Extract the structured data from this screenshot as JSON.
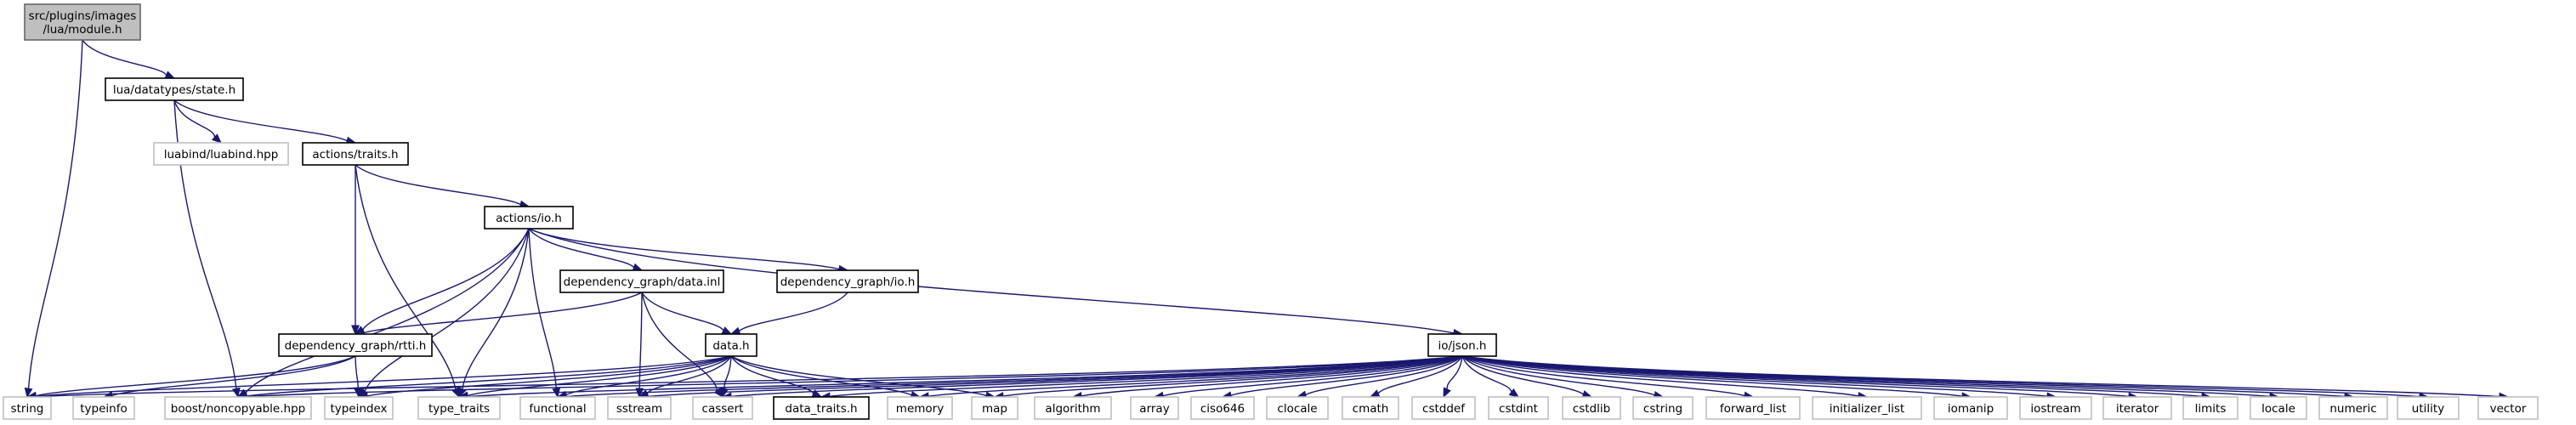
{
  "diagram": {
    "nodes": [
      {
        "id": "module_h",
        "label_lines": [
          "src/plugins/images",
          "/lua/module.h"
        ],
        "style": "root"
      },
      {
        "id": "state_h",
        "label_lines": [
          "lua/datatypes/state.h"
        ],
        "style": "normal"
      },
      {
        "id": "luabind_hpp",
        "label_lines": [
          "luabind/luabind.hpp"
        ],
        "style": "missing"
      },
      {
        "id": "traits_h",
        "label_lines": [
          "actions/traits.h"
        ],
        "style": "normal"
      },
      {
        "id": "actions_io_h",
        "label_lines": [
          "actions/io.h"
        ],
        "style": "normal"
      },
      {
        "id": "dg_data_inl",
        "label_lines": [
          "dependency_graph/data.inl"
        ],
        "style": "normal"
      },
      {
        "id": "dg_io_h",
        "label_lines": [
          "dependency_graph/io.h"
        ],
        "style": "normal"
      },
      {
        "id": "dg_rtti_h",
        "label_lines": [
          "dependency_graph/rtti.h"
        ],
        "style": "normal"
      },
      {
        "id": "data_h",
        "label_lines": [
          "data.h"
        ],
        "style": "normal"
      },
      {
        "id": "json_h",
        "label_lines": [
          "io/json.h"
        ],
        "style": "normal"
      },
      {
        "id": "string",
        "label_lines": [
          "string"
        ],
        "style": "missing"
      },
      {
        "id": "typeinfo",
        "label_lines": [
          "typeinfo"
        ],
        "style": "missing"
      },
      {
        "id": "noncopyable",
        "label_lines": [
          "boost/noncopyable.hpp"
        ],
        "style": "missing"
      },
      {
        "id": "typeindex",
        "label_lines": [
          "typeindex"
        ],
        "style": "missing"
      },
      {
        "id": "type_traits",
        "label_lines": [
          "type_traits"
        ],
        "style": "missing"
      },
      {
        "id": "functional",
        "label_lines": [
          "functional"
        ],
        "style": "missing"
      },
      {
        "id": "sstream",
        "label_lines": [
          "sstream"
        ],
        "style": "missing"
      },
      {
        "id": "cassert",
        "label_lines": [
          "cassert"
        ],
        "style": "missing"
      },
      {
        "id": "data_traits_h",
        "label_lines": [
          "data_traits.h"
        ],
        "style": "normal"
      },
      {
        "id": "memory",
        "label_lines": [
          "memory"
        ],
        "style": "missing"
      },
      {
        "id": "map",
        "label_lines": [
          "map"
        ],
        "style": "missing"
      },
      {
        "id": "algorithm",
        "label_lines": [
          "algorithm"
        ],
        "style": "missing"
      },
      {
        "id": "array",
        "label_lines": [
          "array"
        ],
        "style": "missing"
      },
      {
        "id": "ciso646",
        "label_lines": [
          "ciso646"
        ],
        "style": "missing"
      },
      {
        "id": "clocale",
        "label_lines": [
          "clocale"
        ],
        "style": "missing"
      },
      {
        "id": "cmath",
        "label_lines": [
          "cmath"
        ],
        "style": "missing"
      },
      {
        "id": "cstddef",
        "label_lines": [
          "cstddef"
        ],
        "style": "missing"
      },
      {
        "id": "cstdint",
        "label_lines": [
          "cstdint"
        ],
        "style": "missing"
      },
      {
        "id": "cstdlib",
        "label_lines": [
          "cstdlib"
        ],
        "style": "missing"
      },
      {
        "id": "cstring",
        "label_lines": [
          "cstring"
        ],
        "style": "missing"
      },
      {
        "id": "forward_list",
        "label_lines": [
          "forward_list"
        ],
        "style": "missing"
      },
      {
        "id": "initializer_list",
        "label_lines": [
          "initializer_list"
        ],
        "style": "missing"
      },
      {
        "id": "iomanip",
        "label_lines": [
          "iomanip"
        ],
        "style": "missing"
      },
      {
        "id": "iostream",
        "label_lines": [
          "iostream"
        ],
        "style": "missing"
      },
      {
        "id": "iterator",
        "label_lines": [
          "iterator"
        ],
        "style": "missing"
      },
      {
        "id": "limits",
        "label_lines": [
          "limits"
        ],
        "style": "missing"
      },
      {
        "id": "locale",
        "label_lines": [
          "locale"
        ],
        "style": "missing"
      },
      {
        "id": "numeric",
        "label_lines": [
          "numeric"
        ],
        "style": "missing"
      },
      {
        "id": "utility",
        "label_lines": [
          "utility"
        ],
        "style": "missing"
      },
      {
        "id": "vector",
        "label_lines": [
          "vector"
        ],
        "style": "missing"
      }
    ],
    "edges": [
      [
        "module_h",
        "state_h"
      ],
      [
        "module_h",
        "string"
      ],
      [
        "state_h",
        "luabind_hpp"
      ],
      [
        "state_h",
        "traits_h"
      ],
      [
        "state_h",
        "noncopyable"
      ],
      [
        "traits_h",
        "actions_io_h"
      ],
      [
        "traits_h",
        "dg_rtti_h"
      ],
      [
        "traits_h",
        "type_traits"
      ],
      [
        "actions_io_h",
        "dg_data_inl"
      ],
      [
        "actions_io_h",
        "dg_io_h"
      ],
      [
        "actions_io_h",
        "json_h"
      ],
      [
        "actions_io_h",
        "dg_rtti_h"
      ],
      [
        "actions_io_h",
        "noncopyable"
      ],
      [
        "actions_io_h",
        "typeindex"
      ],
      [
        "actions_io_h",
        "type_traits"
      ],
      [
        "actions_io_h",
        "functional"
      ],
      [
        "dg_data_inl",
        "dg_rtti_h"
      ],
      [
        "dg_data_inl",
        "data_h"
      ],
      [
        "dg_data_inl",
        "sstream"
      ],
      [
        "dg_data_inl",
        "cassert"
      ],
      [
        "dg_io_h",
        "data_h"
      ],
      [
        "dg_rtti_h",
        "string"
      ],
      [
        "dg_rtti_h",
        "typeinfo"
      ],
      [
        "dg_rtti_h",
        "typeindex"
      ],
      [
        "data_h",
        "string"
      ],
      [
        "data_h",
        "noncopyable"
      ],
      [
        "data_h",
        "typeindex"
      ],
      [
        "data_h",
        "type_traits"
      ],
      [
        "data_h",
        "functional"
      ],
      [
        "data_h",
        "sstream"
      ],
      [
        "data_h",
        "cassert"
      ],
      [
        "data_h",
        "data_traits_h"
      ],
      [
        "data_h",
        "memory"
      ],
      [
        "data_h",
        "map"
      ],
      [
        "json_h",
        "string"
      ],
      [
        "json_h",
        "noncopyable"
      ],
      [
        "json_h",
        "type_traits"
      ],
      [
        "json_h",
        "functional"
      ],
      [
        "json_h",
        "sstream"
      ],
      [
        "json_h",
        "cassert"
      ],
      [
        "json_h",
        "data_traits_h"
      ],
      [
        "json_h",
        "memory"
      ],
      [
        "json_h",
        "map"
      ],
      [
        "json_h",
        "algorithm"
      ],
      [
        "json_h",
        "array"
      ],
      [
        "json_h",
        "ciso646"
      ],
      [
        "json_h",
        "clocale"
      ],
      [
        "json_h",
        "cmath"
      ],
      [
        "json_h",
        "cstddef"
      ],
      [
        "json_h",
        "cstdint"
      ],
      [
        "json_h",
        "cstdlib"
      ],
      [
        "json_h",
        "cstring"
      ],
      [
        "json_h",
        "forward_list"
      ],
      [
        "json_h",
        "initializer_list"
      ],
      [
        "json_h",
        "iomanip"
      ],
      [
        "json_h",
        "iostream"
      ],
      [
        "json_h",
        "iterator"
      ],
      [
        "json_h",
        "limits"
      ],
      [
        "json_h",
        "locale"
      ],
      [
        "json_h",
        "numeric"
      ],
      [
        "json_h",
        "utility"
      ],
      [
        "json_h",
        "vector"
      ]
    ]
  }
}
